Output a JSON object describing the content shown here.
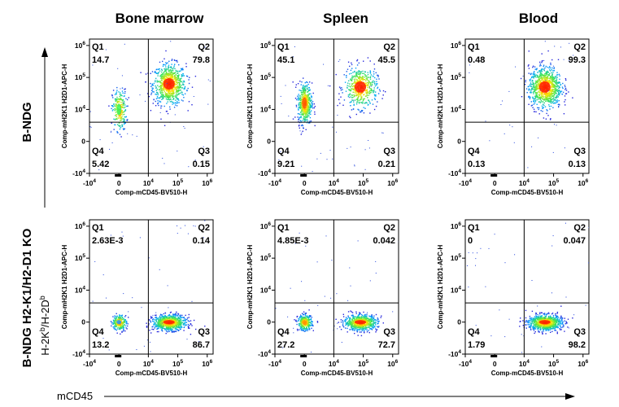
{
  "columns": [
    "Bone marrow",
    "Spleen",
    "Blood"
  ],
  "rows": [
    "B-NDG",
    "B-NDG H2-K1/H2-D1 KO"
  ],
  "global_x_label": "mCD45",
  "global_y_label": "H-2Kb/H-2Db",
  "chart_data": [
    {
      "type": "scatter",
      "subtype": "flow-cytometry-density",
      "tissue": "Bone marrow",
      "strain": "B-NDG",
      "xlabel": "Comp-mCD45-BV510-H",
      "ylabel": "Comp-mH2K1 H2D1-APC-H",
      "x_ticks": [
        "-10^4",
        "0",
        "10^4",
        "10^5",
        "10^6"
      ],
      "y_ticks": [
        "10^6",
        "10^5",
        "10^4",
        "0",
        "-10^4"
      ],
      "gate": {
        "x": "10^4",
        "y": "10^3.6"
      },
      "quadrants": {
        "Q1": "14.7",
        "Q2": "79.8",
        "Q3": "0.15",
        "Q4": "5.42"
      },
      "populations": [
        {
          "x": "10^4.7",
          "y": "10^4.8",
          "percent_of_events": "79.8",
          "color": "#ff2000"
        },
        {
          "x": "0",
          "y": "10^4",
          "percent_of_events": "14.7",
          "color": "#30ff60"
        }
      ]
    },
    {
      "type": "scatter",
      "subtype": "flow-cytometry-density",
      "tissue": "Spleen",
      "strain": "B-NDG",
      "xlabel": "Comp-mCD45-BV510-H",
      "ylabel": "Comp-mH2K1 H2D1-APC-H",
      "x_ticks": [
        "-10^4",
        "0",
        "10^4",
        "10^5",
        "10^6"
      ],
      "y_ticks": [
        "10^6",
        "10^5",
        "10^4",
        "0",
        "-10^4"
      ],
      "gate": {
        "x": "10^4",
        "y": "10^3.6"
      },
      "quadrants": {
        "Q1": "45.1",
        "Q2": "45.5",
        "Q3": "0.21",
        "Q4": "9.21"
      },
      "populations": [
        {
          "x": "10^4.9",
          "y": "10^4.7",
          "percent_of_events": "45.5",
          "color": "#ff2000"
        },
        {
          "x": "0",
          "y": "10^4.2",
          "percent_of_events": "45.1",
          "color": "#ff6000"
        }
      ]
    },
    {
      "type": "scatter",
      "subtype": "flow-cytometry-density",
      "tissue": "Blood",
      "strain": "B-NDG",
      "xlabel": "Comp-mCD45-BV510-H",
      "ylabel": "Comp-mH2K1 H2D1-APC-H",
      "x_ticks": [
        "-10^4",
        "0",
        "10^4",
        "10^5",
        "10^6"
      ],
      "y_ticks": [
        "10^6",
        "10^5",
        "10^4",
        "0",
        "-10^4"
      ],
      "gate": {
        "x": "10^4",
        "y": "10^3.6"
      },
      "quadrants": {
        "Q1": "0.48",
        "Q2": "99.3",
        "Q3": "0.13",
        "Q4": "0.13"
      },
      "populations": [
        {
          "x": "10^4.7",
          "y": "10^4.7",
          "percent_of_events": "99.3",
          "color": "#ff2000"
        }
      ]
    },
    {
      "type": "scatter",
      "subtype": "flow-cytometry-density",
      "tissue": "Bone marrow",
      "strain": "B-NDG H2-K1/H2-D1 KO",
      "xlabel": "Comp-mCD45-BV510-H",
      "ylabel": "Comp-mH2K1 H2D1-APC-H",
      "x_ticks": [
        "-10^4",
        "0",
        "10^4",
        "10^5",
        "10^6"
      ],
      "y_ticks": [
        "10^6",
        "10^5",
        "10^4",
        "0",
        "-10^4"
      ],
      "gate": {
        "x": "10^4",
        "y": "10^3.6"
      },
      "quadrants": {
        "Q1": "2.63E-3",
        "Q2": "0.14",
        "Q3": "86.7",
        "Q4": "13.2"
      },
      "populations": [
        {
          "x": "10^4.7",
          "y": "0",
          "percent_of_events": "86.7",
          "color": "#ff2000"
        },
        {
          "x": "0",
          "y": "0",
          "percent_of_events": "13.2",
          "color": "#20a0ff"
        }
      ]
    },
    {
      "type": "scatter",
      "subtype": "flow-cytometry-density",
      "tissue": "Spleen",
      "strain": "B-NDG H2-K1/H2-D1 KO",
      "xlabel": "Comp-mCD45-BV510-H",
      "ylabel": "Comp-mH2K1 H2D1-APC-H",
      "x_ticks": [
        "-10^4",
        "0",
        "10^4",
        "10^5",
        "10^6"
      ],
      "y_ticks": [
        "10^6",
        "10^5",
        "10^4",
        "0",
        "-10^4"
      ],
      "gate": {
        "x": "10^4",
        "y": "10^3.6"
      },
      "quadrants": {
        "Q1": "4.85E-3",
        "Q2": "0.042",
        "Q3": "72.7",
        "Q4": "27.2"
      },
      "populations": [
        {
          "x": "10^4.9",
          "y": "0",
          "percent_of_events": "72.7",
          "color": "#ff2000"
        },
        {
          "x": "0",
          "y": "0",
          "percent_of_events": "27.2",
          "color": "#ffa000"
        }
      ]
    },
    {
      "type": "scatter",
      "subtype": "flow-cytometry-density",
      "tissue": "Blood",
      "strain": "B-NDG H2-K1/H2-D1 KO",
      "xlabel": "Comp-mCD45-BV510-H",
      "ylabel": "Comp-mH2K1 H2D1-APC-H",
      "x_ticks": [
        "-10^4",
        "0",
        "10^4",
        "10^5",
        "10^6"
      ],
      "y_ticks": [
        "10^6",
        "10^5",
        "10^4",
        "0",
        "-10^4"
      ],
      "gate": {
        "x": "10^4",
        "y": "10^3.6"
      },
      "quadrants": {
        "Q1": "0",
        "Q2": "0.047",
        "Q3": "98.2",
        "Q4": "1.79"
      },
      "populations": [
        {
          "x": "10^4.7",
          "y": "0",
          "percent_of_events": "98.2",
          "color": "#ff2000"
        }
      ]
    }
  ]
}
